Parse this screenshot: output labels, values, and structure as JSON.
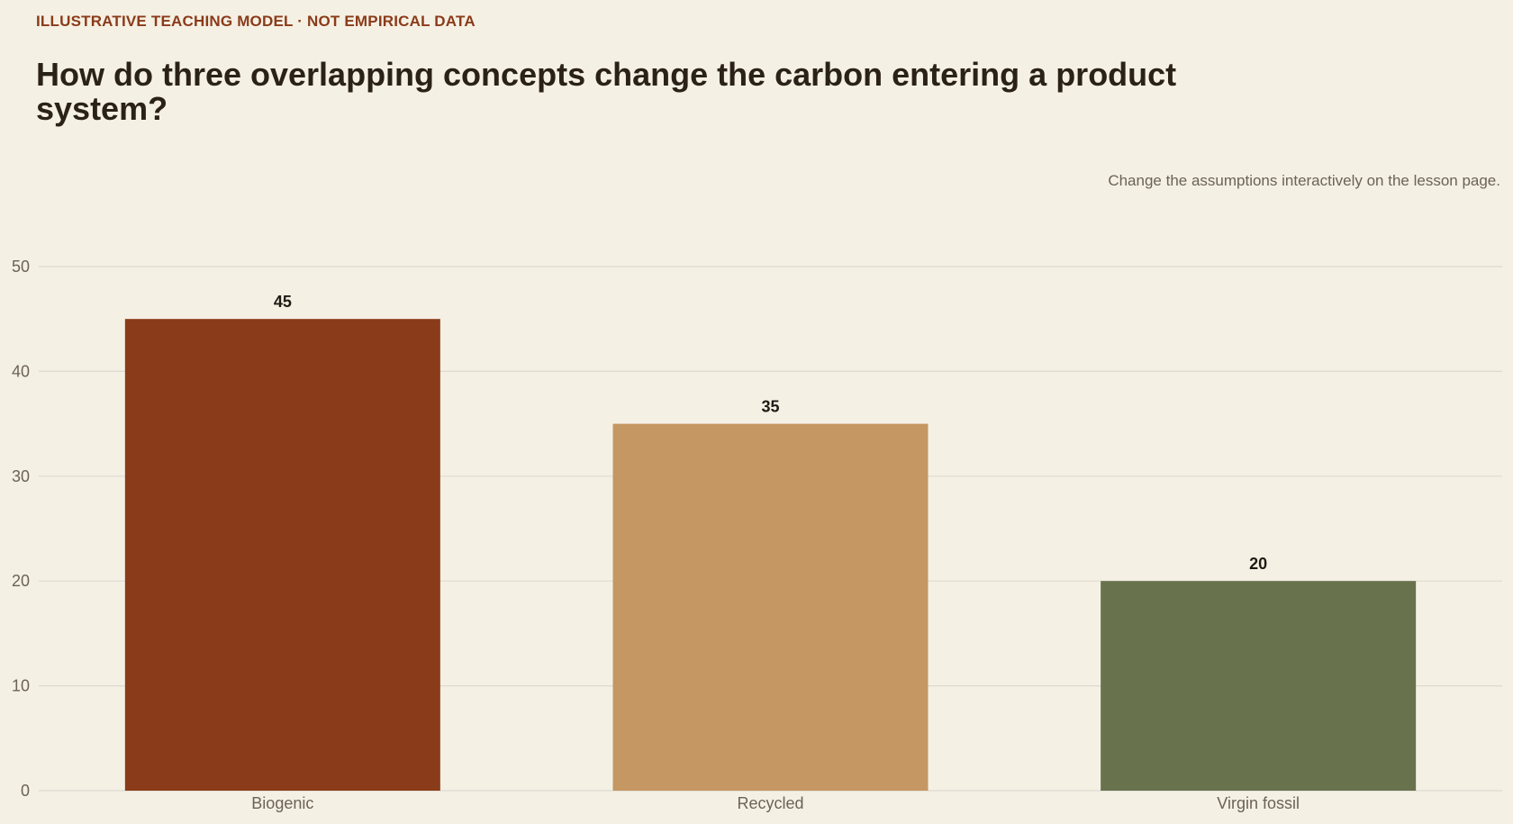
{
  "header": {
    "kicker": "ILLUSTRATIVE TEACHING MODEL · NOT EMPIRICAL DATA",
    "title": "How do three overlapping concepts change the carbon entering a product system?",
    "note": "Change the assumptions interactively on the lesson page."
  },
  "colors": {
    "background": "#f5f0e4",
    "kicker": "#8a3b19",
    "grid": "#dedad0"
  },
  "chart_data": {
    "type": "bar",
    "categories": [
      "Biogenic",
      "Recycled",
      "Virgin fossil"
    ],
    "values": [
      45,
      35,
      20
    ],
    "colors": [
      "#8a3b19",
      "#c49763",
      "#68724d"
    ],
    "ylim": [
      0,
      50
    ],
    "yticks": [
      0,
      10,
      20,
      30,
      40,
      50
    ],
    "grid": true,
    "legend": "none",
    "data_labels": true
  }
}
